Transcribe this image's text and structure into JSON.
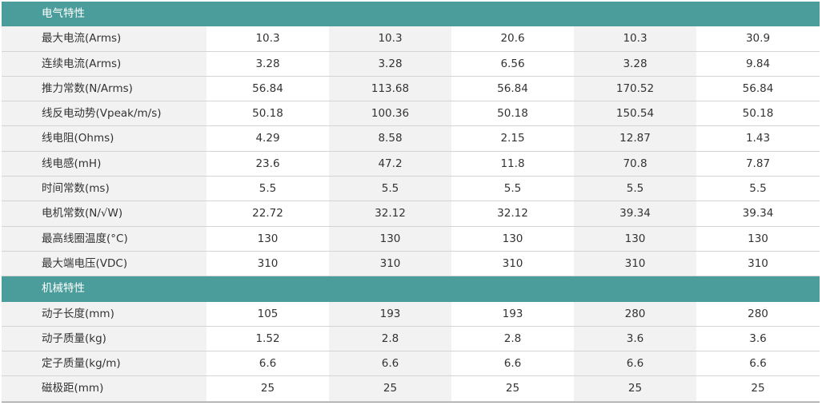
{
  "sections": [
    {
      "title": "电气特性",
      "rows": [
        {
          "label": "最大电流(Arms)",
          "values": [
            "10.3",
            "10.3",
            "20.6",
            "10.3",
            "30.9"
          ]
        },
        {
          "label": "连续电流(Arms)",
          "values": [
            "3.28",
            "3.28",
            "6.56",
            "3.28",
            "9.84"
          ]
        },
        {
          "label": "推力常数(N/Arms)",
          "values": [
            "56.84",
            "113.68",
            "56.84",
            "170.52",
            "56.84"
          ]
        },
        {
          "label": "线反电动势(Vpeak/m/s)",
          "values": [
            "50.18",
            "100.36",
            "50.18",
            "150.54",
            "50.18"
          ]
        },
        {
          "label": "线电阻(Ohms)",
          "values": [
            "4.29",
            "8.58",
            "2.15",
            "12.87",
            "1.43"
          ]
        },
        {
          "label": "线电感(mH)",
          "values": [
            "23.6",
            "47.2",
            "11.8",
            "70.8",
            "7.87"
          ]
        },
        {
          "label": "时间常数(ms)",
          "values": [
            "5.5",
            "5.5",
            "5.5",
            "5.5",
            "5.5"
          ]
        },
        {
          "label": "电机常数(N/√W)",
          "values": [
            "22.72",
            "32.12",
            "32.12",
            "39.34",
            "39.34"
          ]
        },
        {
          "label": "最高线圈温度(°C)",
          "values": [
            "130",
            "130",
            "130",
            "130",
            "130"
          ]
        },
        {
          "label": "最大端电压(VDC)",
          "values": [
            "310",
            "310",
            "310",
            "310",
            "310"
          ]
        }
      ]
    },
    {
      "title": "机械特性",
      "rows": [
        {
          "label": "动子长度(mm)",
          "values": [
            "105",
            "193",
            "193",
            "280",
            "280"
          ]
        },
        {
          "label": "动子质量(kg)",
          "values": [
            "1.52",
            "2.8",
            "2.8",
            "3.6",
            "3.6"
          ]
        },
        {
          "label": "定子质量(kg/m)",
          "values": [
            "6.6",
            "6.6",
            "6.6",
            "6.6",
            "6.6"
          ]
        },
        {
          "label": "磁极距(mm)",
          "values": [
            "25",
            "25",
            "25",
            "25",
            "25"
          ]
        }
      ]
    }
  ]
}
